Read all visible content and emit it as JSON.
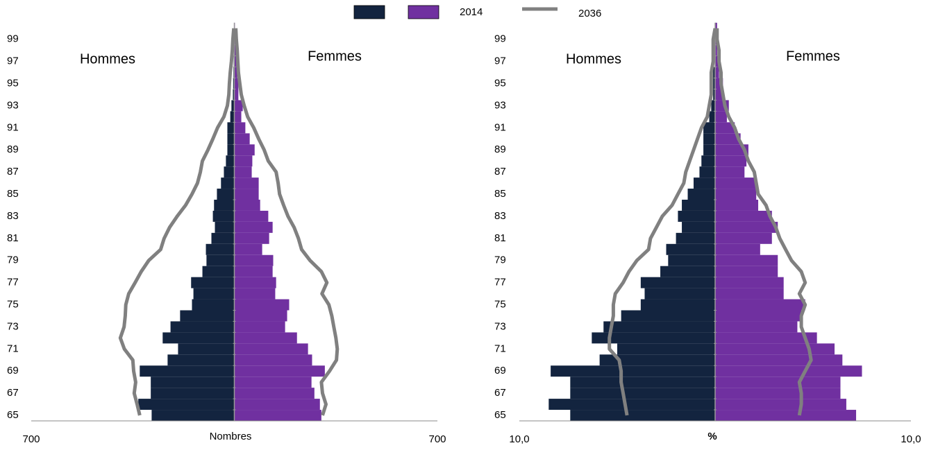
{
  "chart_data": [
    {
      "type": "pyramid",
      "left_label": "Hommes",
      "right_label": "Femmes",
      "xlabel": "Nombres",
      "xlim": [
        -700,
        700
      ],
      "xticks": [
        {
          "value": -700,
          "label": "700"
        },
        700
      ],
      "categories": [
        "65",
        null,
        "67",
        null,
        "69",
        null,
        "71",
        null,
        "73",
        null,
        "75",
        null,
        "77",
        null,
        "79",
        null,
        "81",
        null,
        "83",
        null,
        "85",
        null,
        "87",
        null,
        "89",
        null,
        "91",
        null,
        "93",
        null,
        "95",
        null,
        "97",
        null,
        "99",
        null
      ],
      "series": [
        {
          "type": "bar",
          "side": "left",
          "color": "#13243f",
          "values": [
            285,
            331,
            288,
            288,
            326,
            230,
            194,
            247,
            220,
            187,
            146,
            141,
            149,
            110,
            96,
            98,
            79,
            67,
            74,
            70,
            60,
            46,
            36,
            29,
            24,
            24,
            24,
            14,
            10,
            5,
            4,
            3,
            2,
            1,
            1,
            0
          ]
        },
        {
          "name": "2014",
          "type": "bar",
          "side": "right",
          "color": "#7030a0",
          "values": [
            300,
            295,
            276,
            266,
            312,
            268,
            254,
            216,
            175,
            182,
            189,
            141,
            144,
            132,
            134,
            96,
            120,
            132,
            117,
            89,
            84,
            84,
            60,
            62,
            70,
            53,
            38,
            24,
            29,
            14,
            14,
            10,
            7,
            5,
            4,
            2
          ]
        },
        {
          "name": "2036",
          "type": "line",
          "side": "left",
          "color": "#808080",
          "values": [
            326,
            335,
            345,
            340,
            347,
            350,
            379,
            393,
            380,
            376,
            374,
            364,
            342,
            321,
            295,
            254,
            242,
            223,
            197,
            168,
            146,
            127,
            117,
            110,
            91,
            74,
            58,
            36,
            24,
            19,
            17,
            14,
            10,
            7,
            5,
            2
          ]
        },
        {
          "type": "line",
          "side": "right",
          "color": "#808080",
          "values": [
            304,
            316,
            304,
            300,
            328,
            352,
            355,
            350,
            343,
            336,
            326,
            302,
            319,
            300,
            261,
            232,
            221,
            206,
            185,
            170,
            156,
            151,
            144,
            117,
            103,
            84,
            67,
            46,
            34,
            24,
            19,
            14,
            12,
            10,
            7,
            5
          ]
        }
      ]
    },
    {
      "type": "pyramid",
      "left_label": "Hommes",
      "right_label": "Femmes",
      "xlabel": "%",
      "xlim": [
        -10,
        10
      ],
      "xticks": [
        {
          "value": -10,
          "label": "10,0"
        },
        {
          "value": 10,
          "label": "10,0"
        }
      ],
      "categories": [
        "65",
        null,
        "67",
        null,
        "69",
        null,
        "71",
        null,
        "73",
        null,
        "75",
        null,
        "77",
        null,
        "79",
        null,
        "81",
        null,
        "83",
        null,
        "85",
        null,
        "87",
        null,
        "89",
        null,
        "91",
        null,
        "93",
        null,
        "95",
        null,
        "97",
        null,
        "99",
        null
      ],
      "series": [
        {
          "type": "bar",
          "side": "left",
          "color": "#13243f",
          "values": [
            7.4,
            8.5,
            7.4,
            7.4,
            8.4,
            5.9,
            5.0,
            6.3,
            5.7,
            4.8,
            3.8,
            3.6,
            3.8,
            2.8,
            2.4,
            2.5,
            2.0,
            1.7,
            1.9,
            1.7,
            1.4,
            1.1,
            0.8,
            0.7,
            0.6,
            0.6,
            0.6,
            0.3,
            0.2,
            0.1,
            0.1,
            0.1,
            0.0,
            0.0,
            0.0,
            0.0
          ]
        },
        {
          "type": "bar",
          "side": "right",
          "color": "#7030a0",
          "values": [
            7.2,
            6.7,
            6.4,
            6.4,
            7.5,
            6.5,
            6.1,
            5.2,
            4.2,
            4.4,
            4.6,
            3.5,
            3.5,
            3.2,
            3.2,
            2.3,
            2.9,
            3.2,
            2.9,
            2.2,
            2.1,
            2.1,
            1.5,
            1.6,
            1.7,
            1.3,
            1.0,
            0.6,
            0.7,
            0.4,
            0.4,
            0.2,
            0.2,
            0.1,
            0.1,
            0.1
          ]
        },
        {
          "type": "line",
          "side": "left",
          "color": "#808080",
          "values": [
            4.5,
            4.6,
            4.7,
            4.8,
            4.8,
            4.9,
            5.4,
            5.4,
            5.3,
            5.2,
            5.2,
            5.1,
            4.7,
            4.4,
            4.0,
            3.4,
            3.3,
            3.0,
            2.7,
            2.2,
            1.9,
            1.6,
            1.5,
            1.3,
            1.1,
            0.9,
            0.7,
            0.4,
            0.3,
            0.2,
            0.2,
            0.2,
            0.1,
            0.1,
            0.1,
            0.0
          ]
        },
        {
          "type": "line",
          "side": "right",
          "color": "#808080",
          "values": [
            4.3,
            4.4,
            4.4,
            4.3,
            4.6,
            4.9,
            4.8,
            4.6,
            4.4,
            4.4,
            4.6,
            4.3,
            4.6,
            4.4,
            3.9,
            3.6,
            3.3,
            3.1,
            2.8,
            2.6,
            2.2,
            2.1,
            2.0,
            1.7,
            1.5,
            1.2,
            1.0,
            0.7,
            0.5,
            0.4,
            0.3,
            0.3,
            0.2,
            0.2,
            0.1,
            0.1
          ]
        }
      ]
    }
  ]
}
